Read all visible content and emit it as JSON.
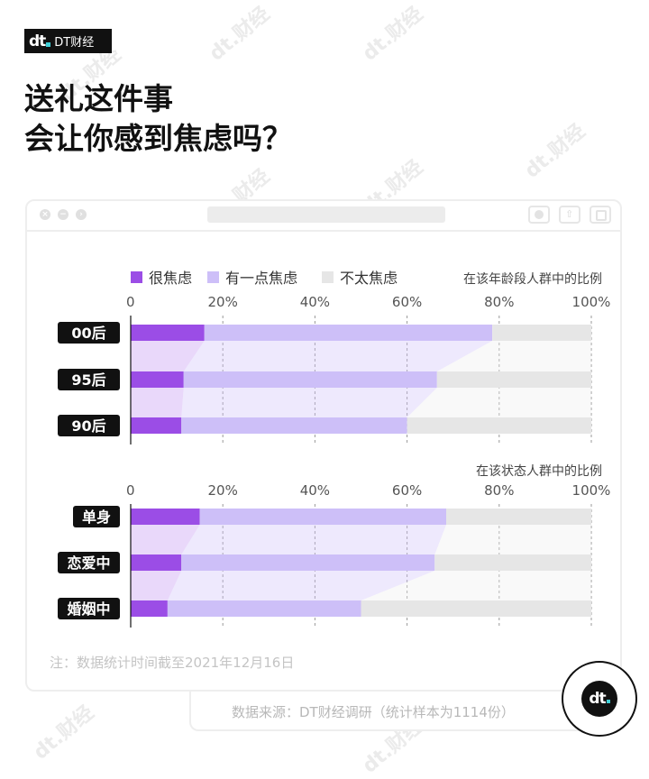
{
  "brand": {
    "logo_mark": "dt",
    "logo_text": "DT财经",
    "watermark": "dt.财经",
    "accent": "#3fd0d8"
  },
  "title": {
    "line1": "送礼这件事",
    "line2": "会让你感到焦虑吗？"
  },
  "legend": [
    {
      "label": "很焦虑",
      "color": "#9b4de6"
    },
    {
      "label": "有一点焦虑",
      "color": "#cdbff8"
    },
    {
      "label": "不太焦虑",
      "color": "#e6e6e6"
    }
  ],
  "chart_data": [
    {
      "type": "bar",
      "stacked": true,
      "orientation": "horizontal",
      "subtitle": "在该年龄段人群中的比例",
      "categories": [
        "00后",
        "95后",
        "90后"
      ],
      "series": [
        {
          "name": "很焦虑",
          "values": [
            16,
            11.5,
            11
          ]
        },
        {
          "name": "有一点焦虑",
          "values": [
            62.5,
            55,
            49
          ]
        },
        {
          "name": "不太焦虑",
          "values": [
            21.5,
            33.5,
            40
          ]
        }
      ],
      "xlim": [
        0,
        100
      ],
      "xticks": [
        "0",
        "20%",
        "40%",
        "60%",
        "80%",
        "100%"
      ],
      "grid": true
    },
    {
      "type": "bar",
      "stacked": true,
      "orientation": "horizontal",
      "subtitle": "在该状态人群中的比例",
      "categories": [
        "单身",
        "恋爱中",
        "婚姻中"
      ],
      "series": [
        {
          "name": "很焦虑",
          "values": [
            15,
            11,
            8
          ]
        },
        {
          "name": "有一点焦虑",
          "values": [
            53.5,
            55,
            42
          ]
        },
        {
          "name": "不太焦虑",
          "values": [
            31.5,
            34,
            50
          ]
        }
      ],
      "xlim": [
        0,
        100
      ],
      "xticks": [
        "0",
        "20%",
        "40%",
        "60%",
        "80%",
        "100%"
      ],
      "grid": true
    }
  ],
  "note": "注：数据统计时间截至2021年12月16日",
  "source": "数据来源：DT财经调研（统计样本为1114份）"
}
